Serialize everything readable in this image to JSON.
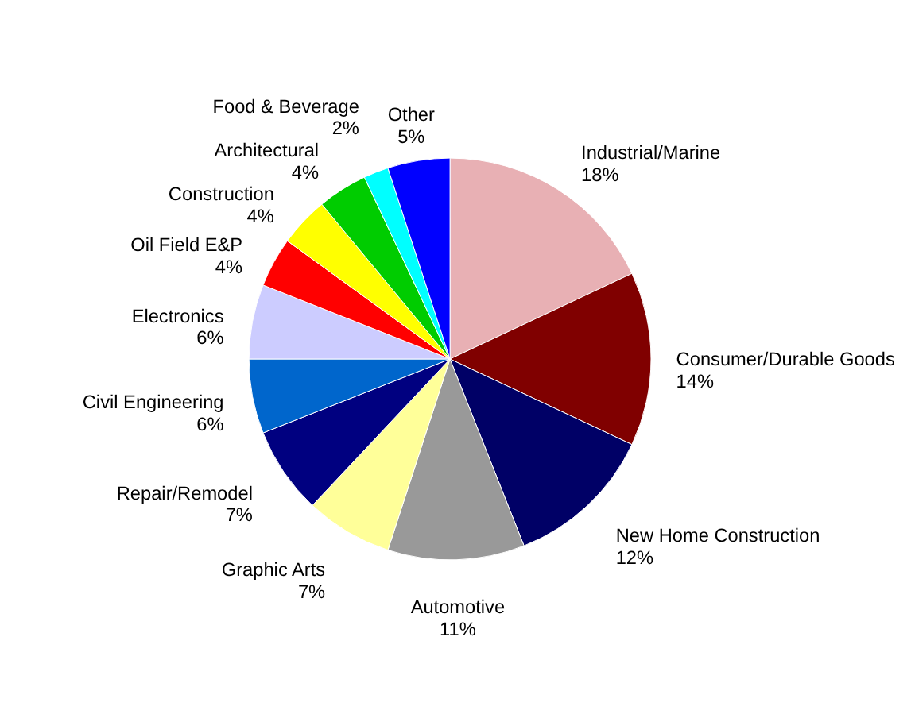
{
  "chart_data": {
    "type": "pie",
    "categories": [
      "Industrial/Marine",
      "Consumer/Durable Goods",
      "New Home Construction",
      "Automotive",
      "Graphic Arts",
      "Repair/Remodel",
      "Civil Engineering",
      "Electronics",
      "Oil Field E&P",
      "Construction",
      "Architectural",
      "Food & Beverage",
      "Other"
    ],
    "values": [
      18,
      14,
      12,
      11,
      7,
      7,
      6,
      6,
      4,
      4,
      4,
      2,
      5
    ],
    "value_labels": [
      "18%",
      "14%",
      "12%",
      "11%",
      "7%",
      "7%",
      "6%",
      "6%",
      "4%",
      "4%",
      "4%",
      "2%",
      "5%"
    ],
    "colors": [
      "#e8b0b4",
      "#800000",
      "#000066",
      "#999999",
      "#ffff99",
      "#000080",
      "#0066cc",
      "#ccccff",
      "#ff0000",
      "#ffff00",
      "#00cc00",
      "#00ffff",
      "#0000ff"
    ],
    "legend": false
  }
}
